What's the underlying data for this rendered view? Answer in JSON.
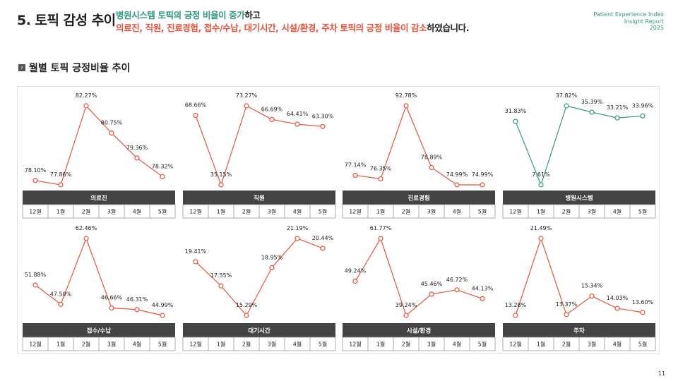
{
  "header": {
    "title": "5. 토픽 감성 추이",
    "line1_green": "병원시스템 토픽의 긍정 비율이 증가",
    "line1_black": "하고",
    "line2_red": "의료진, 직원, 진료경험, 접수/수납, 대기시간, 시설/환경, 주차 토픽의 긍정 비율이 감소",
    "line2_black": "하였습니다.",
    "brand": [
      "Patient Experience Index",
      "Insight Report",
      "2025"
    ]
  },
  "section": {
    "icon": "chevron-right-icon",
    "title": "월별 토픽 긍정비율 추이"
  },
  "page_number": "11",
  "colors": {
    "decrease": "#e8533b",
    "increase": "#2e9b7e",
    "label_bar": "#444444"
  },
  "chart_data": [
    {
      "type": "line",
      "title": "의료진",
      "trend": "decrease",
      "x": [
        "12월",
        "1월",
        "2월",
        "3월",
        "4월",
        "5월"
      ],
      "values": [
        78.1,
        77.86,
        82.27,
        80.75,
        79.36,
        78.32
      ],
      "labels": [
        "78.10%",
        "77.86%",
        "82.27%",
        "80.75%",
        "79.36%",
        "78.32%"
      ]
    },
    {
      "type": "line",
      "title": "직원",
      "trend": "decrease",
      "x": [
        "12월",
        "1월",
        "2월",
        "3월",
        "4월",
        "5월"
      ],
      "values": [
        68.66,
        35.15,
        73.27,
        66.69,
        64.41,
        63.3
      ],
      "labels": [
        "68.66%",
        "35.15%",
        "73.27%",
        "66.69%",
        "64.41%",
        "63.30%"
      ]
    },
    {
      "type": "line",
      "title": "진료경험",
      "trend": "decrease",
      "x": [
        "12월",
        "1월",
        "2월",
        "3월",
        "4월",
        "5월"
      ],
      "values": [
        77.14,
        76.35,
        92.78,
        78.89,
        74.99,
        74.99
      ],
      "labels": [
        "77.14%",
        "76.35%",
        "92.78%",
        "78.89%",
        "74.99%",
        "74.99%"
      ]
    },
    {
      "type": "line",
      "title": "병원시스템",
      "trend": "increase",
      "x": [
        "12월",
        "1월",
        "2월",
        "3월",
        "4월",
        "5월"
      ],
      "values": [
        31.83,
        7.61,
        37.82,
        35.39,
        33.21,
        33.96
      ],
      "labels": [
        "31.83%",
        "7.61%",
        "37.82%",
        "35.39%",
        "33.21%",
        "33.96%"
      ]
    },
    {
      "type": "line",
      "title": "접수/수납",
      "trend": "decrease",
      "x": [
        "12월",
        "1월",
        "2월",
        "3월",
        "4월",
        "5월"
      ],
      "values": [
        51.88,
        47.5,
        62.46,
        46.66,
        46.31,
        44.99
      ],
      "labels": [
        "51.88%",
        "47.50%",
        "62.46%",
        "46.66%",
        "46.31%",
        "44.99%"
      ]
    },
    {
      "type": "line",
      "title": "대기시간",
      "trend": "decrease",
      "x": [
        "12월",
        "1월",
        "2월",
        "3월",
        "4월",
        "5월"
      ],
      "values": [
        19.41,
        17.55,
        15.29,
        18.95,
        21.19,
        20.44
      ],
      "labels": [
        "19.41%",
        "17.55%",
        "15.29%",
        "18.95%",
        "21.19%",
        "20.44%"
      ]
    },
    {
      "type": "line",
      "title": "시설/환경",
      "trend": "decrease",
      "x": [
        "12월",
        "1월",
        "2월",
        "3월",
        "4월",
        "5월"
      ],
      "values": [
        49.24,
        61.77,
        39.24,
        45.46,
        46.72,
        44.13
      ],
      "labels": [
        "49.24%",
        "61.77%",
        "39.24%",
        "45.46%",
        "46.72%",
        "44.13%"
      ]
    },
    {
      "type": "line",
      "title": "주차",
      "trend": "decrease",
      "x": [
        "12월",
        "1월",
        "2월",
        "3월",
        "4월",
        "5월"
      ],
      "values": [
        13.28,
        21.49,
        13.37,
        15.34,
        14.03,
        13.6
      ],
      "labels": [
        "13.28%",
        "21.49%",
        "13.37%",
        "15.34%",
        "14.03%",
        "13.60%"
      ]
    }
  ]
}
